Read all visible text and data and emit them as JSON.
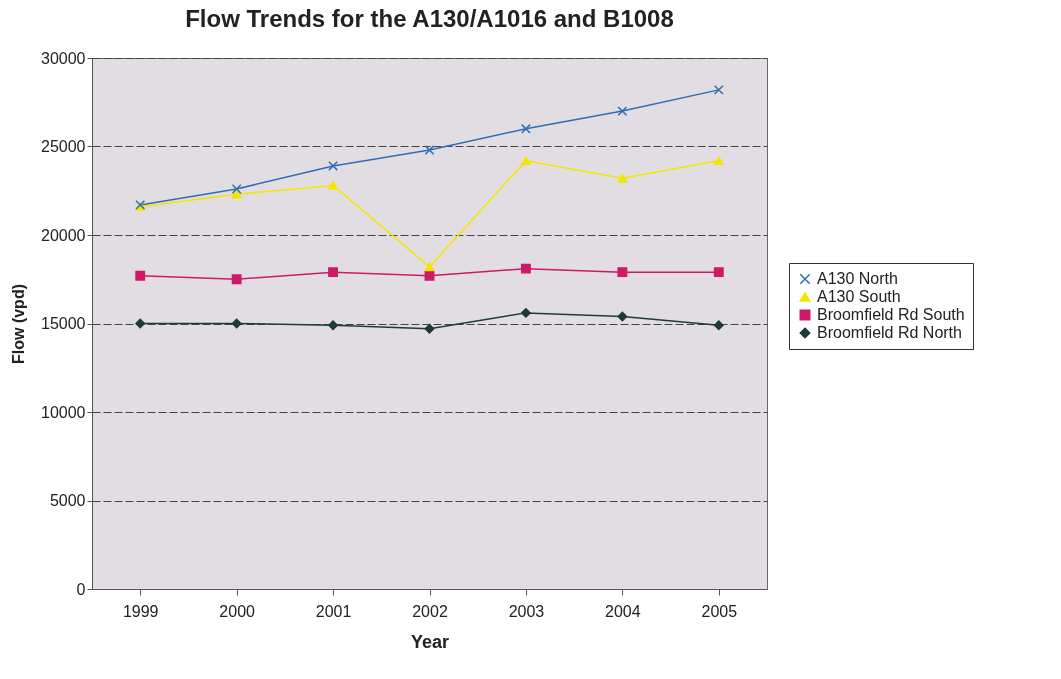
{
  "chart_data": {
    "type": "line",
    "title": "Flow Trends for the A130/A1016 and B1008",
    "xlabel": "Year",
    "ylabel": "Flow (vpd)",
    "categories": [
      "1999",
      "2000",
      "2001",
      "2002",
      "2003",
      "2004",
      "2005"
    ],
    "series": [
      {
        "name": "A130 North",
        "color": "#2e6db4",
        "marker": "cross",
        "values": [
          21700,
          22600,
          23900,
          24800,
          26000,
          27000,
          28200
        ]
      },
      {
        "name": "A130 South",
        "color": "#f2e600",
        "marker": "triangle",
        "values": [
          21600,
          22300,
          22800,
          18200,
          24200,
          23200,
          24200
        ]
      },
      {
        "name": "Broomfield Rd South",
        "color": "#cc1a66",
        "marker": "square",
        "values": [
          17700,
          17500,
          17900,
          17700,
          18100,
          17900,
          17900
        ]
      },
      {
        "name": "Broomfield Rd North",
        "color": "#1e3a3a",
        "marker": "diamond",
        "values": [
          15000,
          15000,
          14900,
          14700,
          15600,
          15400,
          14900
        ]
      }
    ],
    "ylim": [
      0,
      30000
    ],
    "yticks": [
      0,
      5000,
      10000,
      15000,
      20000,
      25000,
      30000
    ],
    "grid": "y",
    "legend": "right",
    "line_style": "solid"
  }
}
